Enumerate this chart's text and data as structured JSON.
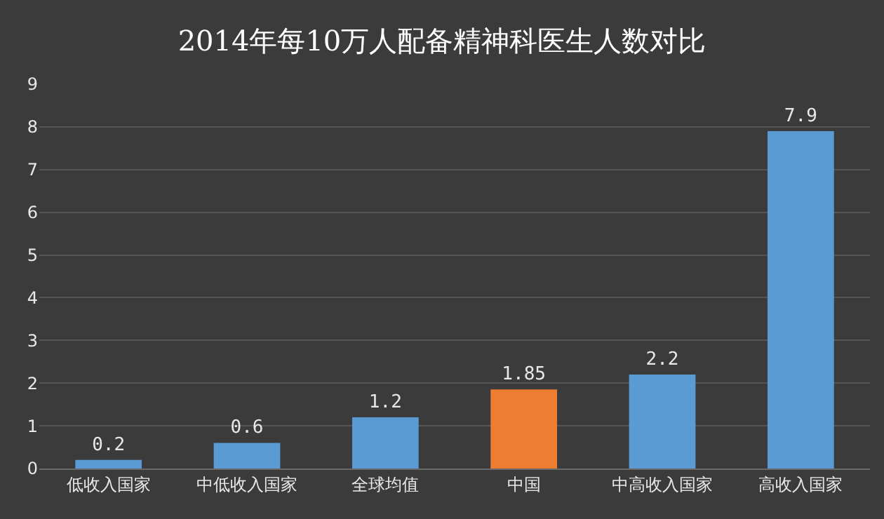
{
  "chart_data": {
    "type": "bar",
    "title": "2014年每10万人配备精神科医生人数对比",
    "categories": [
      "低收入国家",
      "中低收入国家",
      "全球均值",
      "中国",
      "中高收入国家",
      "高收入国家"
    ],
    "values": [
      0.2,
      0.6,
      1.2,
      1.85,
      2.2,
      7.9
    ],
    "colors": [
      "#5b9bd5",
      "#5b9bd5",
      "#5b9bd5",
      "#ed7d31",
      "#5b9bd5",
      "#5b9bd5"
    ],
    "ylim": [
      0,
      9
    ],
    "yticks": [
      0,
      1,
      2,
      3,
      4,
      5,
      6,
      7,
      8,
      9
    ],
    "grid": "y",
    "data_labels": true
  }
}
